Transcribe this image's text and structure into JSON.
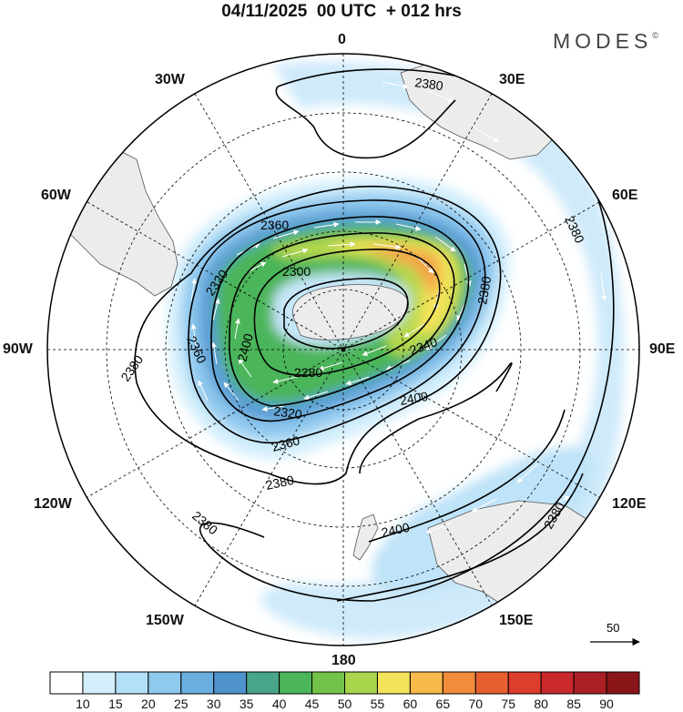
{
  "title": "04/11/2025  00 UTC  + 012 hrs",
  "brand": "MODES",
  "brand_mark": "©",
  "longitude_labels": {
    "lon_0": "0",
    "lon_30e": "30E",
    "lon_60e": "60E",
    "lon_90e": "90E",
    "lon_120e": "120E",
    "lon_150e": "150E",
    "lon_180": "180",
    "lon_150w": "150W",
    "lon_120w": "120W",
    "lon_90w": "90W",
    "lon_60w": "60W",
    "lon_30w": "30W"
  },
  "contour_labels": {
    "c_2380_top": "2380",
    "c_2380_right": "2380",
    "c_2380_right_low": "2380",
    "c_2380_left": "2380",
    "c_2380_lower_left": "2380",
    "c_2380_bottom": "2380",
    "c_2360_top": "2360",
    "c_2360_left": "2360",
    "c_2360_bottom": "2360",
    "c_2340": "2340",
    "c_2320_left": "2320",
    "c_2320_bottom": "2320",
    "c_2300": "2300",
    "c_2280": "2280",
    "c_2400_left": "2400",
    "c_2400_mid": "2400",
    "c_2400_bottom": "2400"
  },
  "reference_vector": {
    "label": "50"
  },
  "colorbar": {
    "labels": [
      "10",
      "15",
      "20",
      "25",
      "30",
      "35",
      "40",
      "45",
      "50",
      "55",
      "60",
      "65",
      "70",
      "75",
      "80",
      "85",
      "90"
    ],
    "colors": [
      "#ffffff",
      "#d4effc",
      "#b4e0f7",
      "#90c9ee",
      "#6aaee0",
      "#4f93cd",
      "#48a58a",
      "#4bb55a",
      "#73c34a",
      "#a8d54c",
      "#f3e35a",
      "#f6b94a",
      "#f18d3a",
      "#e8602f",
      "#dd3d2c",
      "#c9282c",
      "#aa1f24",
      "#8a1519"
    ]
  },
  "colors": {
    "land": "#ececec",
    "contour": "#000000",
    "grid": "#000000"
  }
}
